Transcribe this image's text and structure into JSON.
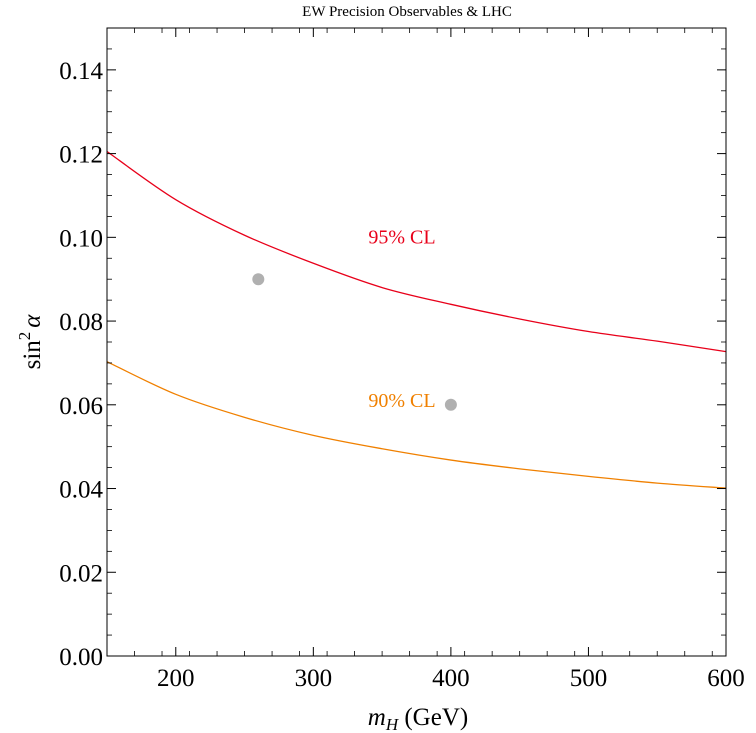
{
  "chart_data": {
    "type": "line",
    "title": "EW Precision Observables & LHC",
    "xlim": [
      150,
      600
    ],
    "ylim": [
      0.0,
      0.15
    ],
    "x_ticks": [
      200,
      300,
      400,
      500,
      600
    ],
    "x_tick_labels": [
      "200",
      "300",
      "400",
      "500",
      "600"
    ],
    "y_ticks": [
      0.0,
      0.02,
      0.04,
      0.06,
      0.08,
      0.1,
      0.12,
      0.14
    ],
    "y_tick_labels": [
      "0.00",
      "0.02",
      "0.04",
      "0.06",
      "0.08",
      "0.10",
      "0.12",
      "0.14"
    ],
    "xlabel": {
      "var": "m",
      "sub": "H",
      "unit": " (GeV)"
    },
    "ylabel": {
      "func": "sin",
      "sup": "2",
      "var": "α"
    },
    "grid": false,
    "series": [
      {
        "name": "95% CL",
        "color": "#e8001a",
        "x": [
          150,
          200,
          250,
          300,
          350,
          400,
          450,
          500,
          550,
          600
        ],
        "y": [
          0.1205,
          0.109,
          0.1005,
          0.0938,
          0.088,
          0.084,
          0.0805,
          0.0775,
          0.0752,
          0.0727
        ]
      },
      {
        "name": "90% CL",
        "color": "#f08000",
        "x": [
          150,
          200,
          250,
          300,
          350,
          400,
          450,
          500,
          550,
          600
        ],
        "y": [
          0.0703,
          0.0625,
          0.057,
          0.0527,
          0.0495,
          0.0468,
          0.0447,
          0.0429,
          0.0413,
          0.0401
        ]
      }
    ],
    "points": [
      {
        "x": 260,
        "y": 0.09,
        "color": "#b0b0b0"
      },
      {
        "x": 400,
        "y": 0.06,
        "color": "#b0b0b0"
      }
    ],
    "annotations": [
      {
        "text": "95% CL",
        "x": 340,
        "y": 0.0985,
        "color": "#e8001a"
      },
      {
        "text": "90% CL",
        "x": 340,
        "y": 0.0595,
        "color": "#f08000"
      }
    ]
  }
}
